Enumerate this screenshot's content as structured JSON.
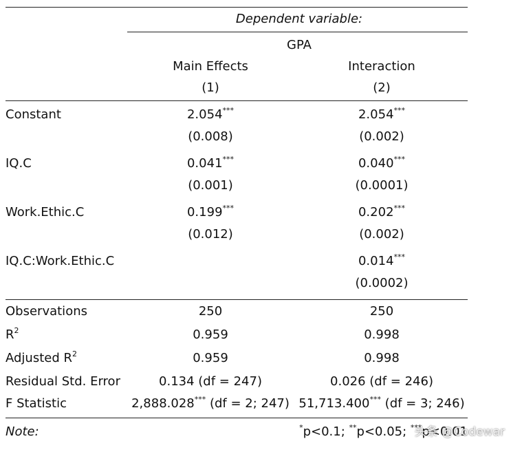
{
  "header": {
    "dependent_label": "Dependent variable:",
    "dependent_var": "GPA",
    "models": [
      {
        "name": "Main Effects",
        "number": "(1)"
      },
      {
        "name": "Interaction",
        "number": "(2)"
      }
    ]
  },
  "rows": [
    {
      "label": "Constant",
      "model_1": {
        "coef": "2.054",
        "stars": "***",
        "se": "(0.008)"
      },
      "model_2": {
        "coef": "2.054",
        "stars": "***",
        "se": "(0.002)"
      }
    },
    {
      "label": "IQ.C",
      "model_1": {
        "coef": "0.041",
        "stars": "***",
        "se": "(0.001)"
      },
      "model_2": {
        "coef": "0.040",
        "stars": "***",
        "se": "(0.0001)"
      }
    },
    {
      "label": "Work.Ethic.C",
      "model_1": {
        "coef": "0.199",
        "stars": "***",
        "se": "(0.012)"
      },
      "model_2": {
        "coef": "0.202",
        "stars": "***",
        "se": "(0.002)"
      }
    },
    {
      "label": "IQ.C:Work.Ethic.C",
      "model_2": {
        "coef": "0.014",
        "stars": "***",
        "se": "(0.0002)"
      }
    }
  ],
  "stats": [
    {
      "label": "Observations",
      "model_1": {
        "value": "250"
      },
      "model_2": {
        "value": "250"
      }
    },
    {
      "label": "R",
      "label_sup": "2",
      "model_1": {
        "value": "0.959"
      },
      "model_2": {
        "value": "0.998"
      }
    },
    {
      "label": "Adjusted R",
      "label_sup": "2",
      "model_1": {
        "value": "0.959"
      },
      "model_2": {
        "value": "0.998"
      }
    },
    {
      "label": "Residual Std. Error",
      "model_1": {
        "value": "0.134 (df = 247)"
      },
      "model_2": {
        "value": "0.026 (df = 246)"
      }
    },
    {
      "label": "F Statistic",
      "model_1": {
        "value": "2,888.028",
        "stars": "***",
        "df": "(df = 2; 247)"
      },
      "model_2": {
        "value": "51,713.400",
        "stars": "***",
        "df": "(df = 3; 246)"
      }
    }
  ],
  "footer": {
    "note_label": "Note:",
    "note": [
      {
        "stars": "*",
        "text": "p<0.1;"
      },
      {
        "stars": "**",
        "text": "p<0.05;"
      },
      {
        "stars": "***",
        "text": "p<0.01"
      }
    ]
  },
  "watermark": "头条 @Codewar"
}
